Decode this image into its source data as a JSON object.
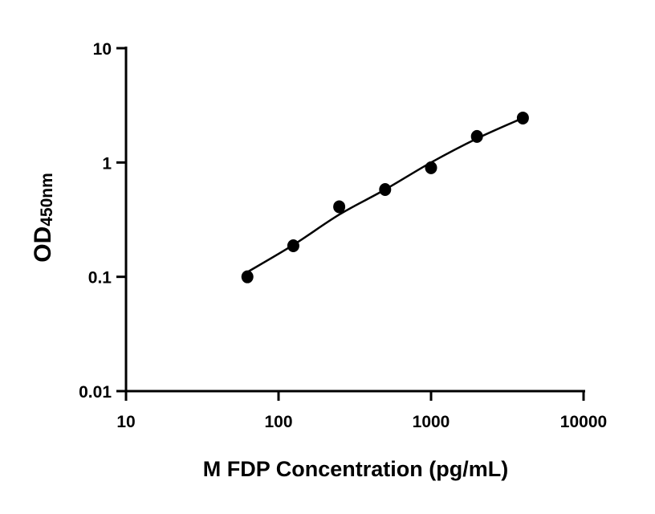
{
  "chart_data": {
    "type": "scatter",
    "title": "",
    "xlabel": "M FDP Concentration (pg/mL)",
    "ylabel": "OD",
    "ylabel_subscript": "450nm",
    "x_scale": "log",
    "y_scale": "log",
    "xlim": [
      10,
      10000
    ],
    "ylim": [
      0.01,
      10
    ],
    "x_ticks": [
      "10",
      "100",
      "1000",
      "10000"
    ],
    "y_ticks": [
      "0.01",
      "0.1",
      "1",
      "10"
    ],
    "grid": false,
    "points": {
      "x": [
        62.5,
        125,
        250,
        500,
        1000,
        2000,
        4000
      ],
      "y": [
        0.1,
        0.187,
        0.41,
        0.58,
        0.9,
        1.69,
        2.45
      ]
    },
    "fit_curve": {
      "x": [
        62.5,
        125,
        250,
        500,
        1000,
        2000,
        4000
      ],
      "y": [
        0.11,
        0.19,
        0.35,
        0.58,
        1.0,
        1.62,
        2.45
      ]
    },
    "marker_color": "#000000",
    "line_color": "#000000"
  }
}
